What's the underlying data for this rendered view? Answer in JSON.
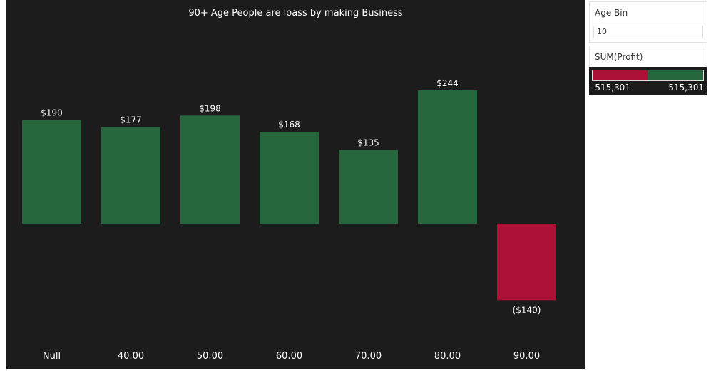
{
  "chart_data": {
    "type": "bar",
    "title": "90+ Age People are loass by making Business",
    "categories": [
      "Null",
      "40.00",
      "50.00",
      "60.00",
      "70.00",
      "80.00",
      "90.00"
    ],
    "values": [
      190,
      177,
      198,
      168,
      135,
      244,
      -140
    ],
    "value_labels": [
      "$190",
      "$177",
      "$198",
      "$168",
      "$135",
      "$244",
      "($140)"
    ],
    "xlabel": "",
    "ylabel": "",
    "ylim": [
      -140,
      244
    ],
    "grid": false,
    "positive_color": "#25663d",
    "negative_color": "#ad1236",
    "background": "#1c1c1c"
  },
  "filter": {
    "title": "Age Bin",
    "value": "10"
  },
  "legend": {
    "title": "SUM(Profit)",
    "min_label": "-515,301",
    "max_label": "515,301",
    "neg_color": "#ad1236",
    "pos_color": "#25663d"
  }
}
